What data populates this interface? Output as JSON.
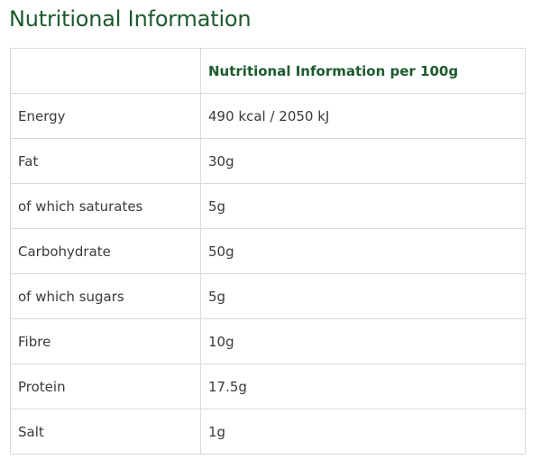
{
  "page": {
    "title": "Nutritional Information"
  },
  "table": {
    "header": {
      "label_column": "",
      "value_column": "Nutritional Information per 100g"
    },
    "rows": [
      {
        "label": "Energy",
        "value": "490 kcal / 2050 kJ"
      },
      {
        "label": "Fat",
        "value": "30g"
      },
      {
        "label": "of which saturates",
        "value": "5g"
      },
      {
        "label": "Carbohydrate",
        "value": "50g"
      },
      {
        "label": "of which sugars",
        "value": "5g"
      },
      {
        "label": "Fibre",
        "value": "10g"
      },
      {
        "label": "Protein",
        "value": "17.5g"
      },
      {
        "label": "Salt",
        "value": "1g"
      }
    ]
  },
  "colors": {
    "heading": "#1d5a2e",
    "body_text": "#3a3a3a",
    "border": "#d9d9d9"
  }
}
